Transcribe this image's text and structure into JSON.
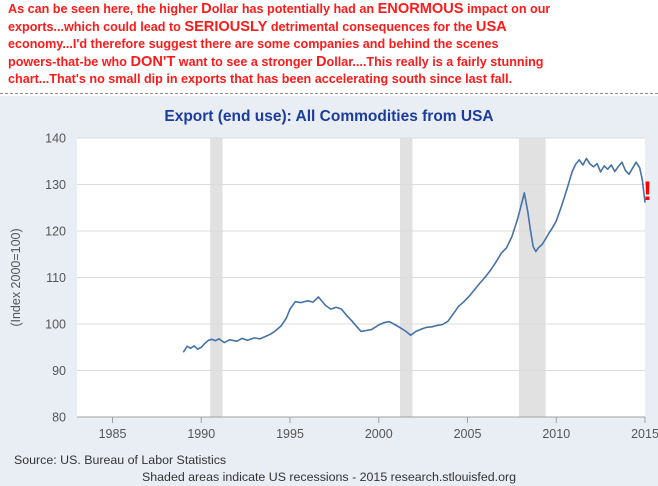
{
  "comment": {
    "lines": [
      [
        {
          "t": "As can be seen here, the higher ",
          "s": "small"
        },
        {
          "t": "D",
          "s": "big"
        },
        {
          "t": "ollar has potentially had an ",
          "s": "small"
        },
        {
          "t": "ENORMOUS",
          "s": "big"
        },
        {
          "t": " impact on our",
          "s": "small"
        }
      ],
      [
        {
          "t": "exports...which could lead to ",
          "s": "small"
        },
        {
          "t": "SERIOUSLY",
          "s": "big"
        },
        {
          "t": " detrimental consequences for the ",
          "s": "small"
        },
        {
          "t": "USA",
          "s": "big"
        }
      ],
      [
        {
          "t": "economy...I'd therefore suggest there are some companies and behind the scenes",
          "s": "small"
        }
      ],
      [
        {
          "t": "powers-that-be who ",
          "s": "small"
        },
        {
          "t": "DON'T",
          "s": "big"
        },
        {
          "t": " want to see a stronger ",
          "s": "small"
        },
        {
          "t": "D",
          "s": "big"
        },
        {
          "t": "ollar....This really is a fairly stunning",
          "s": "small"
        }
      ],
      [
        {
          "t": "chart...That's no small dip in exports that has been accelerating south since last fall.",
          "s": "small"
        }
      ]
    ]
  },
  "annotation_mark": "!",
  "chart_data": {
    "type": "line",
    "title": "Export (end use): All Commodities from USA",
    "ylabel": "(Index 2000=100)",
    "xlabel": "",
    "xlim": [
      1983,
      2015
    ],
    "ylim": [
      80,
      140
    ],
    "x_ticks": [
      1985,
      1990,
      1995,
      2000,
      2005,
      2010,
      2015
    ],
    "y_ticks": [
      80,
      90,
      100,
      110,
      120,
      130,
      140
    ],
    "grid": true,
    "recessions": [
      [
        1990.5,
        1991.2
      ],
      [
        2001.2,
        2001.9
      ],
      [
        2007.9,
        2009.4
      ]
    ],
    "series": [
      {
        "color": "#4572a7",
        "x": [
          1989.0,
          1989.2,
          1989.4,
          1989.6,
          1989.8,
          1990.0,
          1990.2,
          1990.4,
          1990.6,
          1990.8,
          1991.0,
          1991.3,
          1991.6,
          1992.0,
          1992.3,
          1992.6,
          1993.0,
          1993.3,
          1993.6,
          1993.9,
          1994.2,
          1994.5,
          1994.8,
          1995.0,
          1995.3,
          1995.6,
          1996.0,
          1996.3,
          1996.6,
          1997.0,
          1997.3,
          1997.6,
          1997.9,
          1998.2,
          1998.5,
          1998.8,
          1999.0,
          1999.3,
          1999.6,
          2000.0,
          2000.3,
          2000.6,
          2000.9,
          2001.2,
          2001.5,
          2001.8,
          2002.1,
          2002.4,
          2002.7,
          2003.0,
          2003.3,
          2003.6,
          2003.9,
          2004.2,
          2004.5,
          2004.8,
          2005.1,
          2005.4,
          2005.7,
          2006.0,
          2006.3,
          2006.6,
          2006.9,
          2007.2,
          2007.5,
          2007.8,
          2008.0,
          2008.2,
          2008.4,
          2008.55,
          2008.7,
          2008.85,
          2009.0,
          2009.2,
          2009.4,
          2009.6,
          2009.8,
          2010.0,
          2010.3,
          2010.6,
          2010.9,
          2011.1,
          2011.3,
          2011.5,
          2011.7,
          2011.9,
          2012.1,
          2012.3,
          2012.5,
          2012.7,
          2012.9,
          2013.1,
          2013.3,
          2013.5,
          2013.7,
          2013.9,
          2014.1,
          2014.3,
          2014.5,
          2014.7,
          2014.85,
          2015.0
        ],
        "y": [
          94,
          95.2,
          94.8,
          95.3,
          94.6,
          95.0,
          95.8,
          96.5,
          96.7,
          96.4,
          96.8,
          96.0,
          96.6,
          96.3,
          96.9,
          96.5,
          97.0,
          96.8,
          97.3,
          97.8,
          98.6,
          99.6,
          101.3,
          103.2,
          104.8,
          104.6,
          105.0,
          104.7,
          105.8,
          104.0,
          103.2,
          103.6,
          103.2,
          101.8,
          100.6,
          99.3,
          98.4,
          98.6,
          98.8,
          99.8,
          100.3,
          100.5,
          99.9,
          99.2,
          98.5,
          97.6,
          98.4,
          98.9,
          99.3,
          99.4,
          99.7,
          99.9,
          100.6,
          102.2,
          103.8,
          104.8,
          106.0,
          107.4,
          108.8,
          110.1,
          111.6,
          113.3,
          115.2,
          116.4,
          118.8,
          122.3,
          125.2,
          128.2,
          124.0,
          120.1,
          116.6,
          115.6,
          116.4,
          117.1,
          118.3,
          119.6,
          120.8,
          122.2,
          125.4,
          129.0,
          132.8,
          134.4,
          135.3,
          134.2,
          135.6,
          134.4,
          133.8,
          134.5,
          132.7,
          134.0,
          133.3,
          134.2,
          132.8,
          133.9,
          134.8,
          133.0,
          132.2,
          133.5,
          134.8,
          133.6,
          131.0,
          126.2
        ]
      }
    ]
  },
  "footer": {
    "source": "Source: US. Bureau of Labor Statistics",
    "note": "Shaded areas indicate US recessions - 2015 research.stlouisfed.org"
  }
}
